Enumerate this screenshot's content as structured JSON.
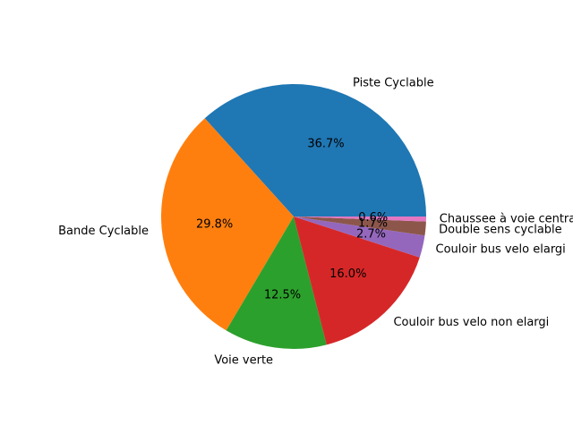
{
  "chart_data": {
    "type": "pie",
    "title": "",
    "start_angle": 0,
    "direction": "counterclockwise",
    "categories": [
      "Piste Cyclable",
      "Bande Cyclable",
      "Voie verte",
      "Couloir bus velo non elargi",
      "Couloir bus velo elargi",
      "Double sens cyclable",
      "Chaussee à voie centrale banalisée"
    ],
    "values": [
      36.7,
      29.8,
      12.5,
      16.0,
      2.7,
      1.7,
      0.6
    ],
    "percent_labels": [
      "36.7%",
      "29.8%",
      "12.5%",
      "16.0%",
      "2.7%",
      "1.7%",
      "0.6%"
    ],
    "colors": [
      "#1f77b4",
      "#ff7f0e",
      "#2ca02c",
      "#d62728",
      "#9467bd",
      "#8c564b",
      "#e377c2"
    ]
  }
}
